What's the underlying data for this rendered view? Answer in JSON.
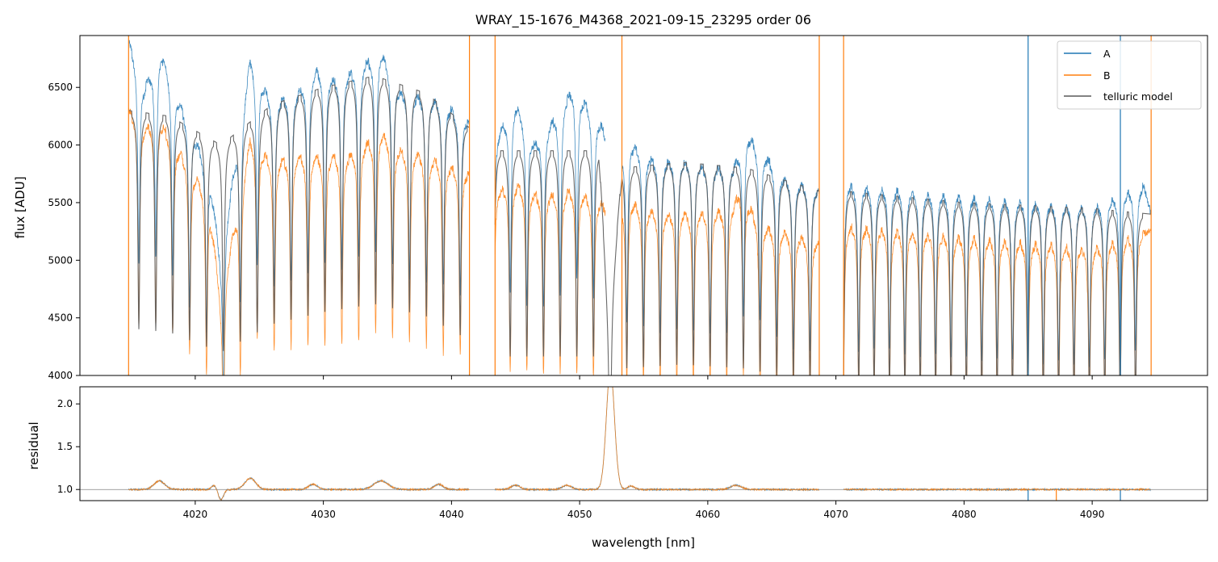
{
  "chart_data": [
    {
      "type": "line",
      "title": "WRAY_15-1676_M4368_2021-09-15_23295  order 06",
      "xlabel": "",
      "ylabel": "flux [ADU]",
      "xlim": [
        4011,
        4099
      ],
      "ylim": [
        4000,
        6950
      ],
      "yticks": [
        4000,
        4500,
        5000,
        5500,
        6000,
        6500
      ],
      "xticks": [
        4020,
        4030,
        4040,
        4050,
        4060,
        4070,
        4080,
        4090
      ],
      "xtick_labels_visible": false,
      "legend": {
        "position": "top-right",
        "entries": [
          "A",
          "B",
          "telluric model"
        ]
      },
      "series": [
        {
          "name": "A",
          "color": "#1f77b4",
          "segments": [
            [
              4014.8,
              4041.4
            ],
            [
              4043.4,
              4052.0
            ],
            [
              4053.3,
              4068.7
            ],
            [
              4070.6,
              4094.6
            ]
          ],
          "continuum_x": [
            4014.8,
            4016.0,
            4017.3,
            4019.0,
            4021.0,
            4022.0,
            4024.3,
            4026.0,
            4028.0,
            4029.5,
            4031.0,
            4032.5,
            4034.5,
            4036.0,
            4038.0,
            4039.5,
            4041.4,
            4043.4,
            4045.0,
            4046.5,
            4048.5,
            4049.5,
            4051.5,
            4053.3,
            4054.0,
            4056.0,
            4058.0,
            4060.0,
            4062.0,
            4063.0,
            4066.0,
            4068.7,
            4070.6,
            4075.0,
            4080.0,
            4085.0,
            4090.0,
            4094.0,
            4094.6
          ],
          "continuum_y": [
            6900,
            6500,
            6800,
            6300,
            5800,
            5000,
            6750,
            6350,
            6450,
            6650,
            6550,
            6650,
            6800,
            6450,
            6400,
            6350,
            6200,
            6050,
            6350,
            6000,
            6300,
            6500,
            6200,
            5900,
            6000,
            5850,
            5850,
            5800,
            5800,
            6100,
            5700,
            5600,
            5650,
            5600,
            5550,
            5500,
            5450,
            5650,
            5400
          ],
          "dip_depth_frac": 0.25
        },
        {
          "name": "B",
          "color": "#ff7f0e",
          "segments": [
            [
              4014.8,
              4041.4
            ],
            [
              4043.4,
              4052.0
            ],
            [
              4053.3,
              4068.7
            ],
            [
              4070.6,
              4094.6
            ]
          ],
          "continuum_x": [
            4014.8,
            4016.0,
            4017.3,
            4019.0,
            4021.0,
            4022.0,
            4024.3,
            4026.0,
            4028.0,
            4030.0,
            4032.0,
            4034.5,
            4036.0,
            4038.0,
            4040.0,
            4041.4,
            4043.4,
            4045.0,
            4047.0,
            4049.5,
            4051.5,
            4053.3,
            4054.0,
            4056.0,
            4060.0,
            4062.0,
            4062.5,
            4064.0,
            4068.7,
            4070.6,
            4075.0,
            4080.0,
            4085.0,
            4090.0,
            4094.6
          ],
          "continuum_y": [
            6300,
            6150,
            6200,
            5900,
            5550,
            4650,
            6050,
            5850,
            5900,
            5900,
            5900,
            6100,
            5950,
            5900,
            5800,
            5750,
            5600,
            5650,
            5550,
            5600,
            5500,
            5450,
            5500,
            5400,
            5400,
            5450,
            5650,
            5300,
            5150,
            5300,
            5250,
            5200,
            5150,
            5100,
            5250
          ],
          "dip_depth_frac": 0.28
        },
        {
          "name": "telluric model",
          "color": "#595959",
          "segments": [
            [
              4014.8,
              4041.4
            ],
            [
              4043.4,
              4068.7
            ],
            [
              4070.6,
              4094.6
            ]
          ],
          "continuum_x": [
            4014.8,
            4018.0,
            4022.0,
            4026.0,
            4030.0,
            4034.0,
            4038.0,
            4041.4,
            4043.4,
            4048.0,
            4051.5,
            4052.3,
            4053.3,
            4058.0,
            4063.0,
            4068.7,
            4070.6,
            4080.0,
            4090.0,
            4094.6
          ],
          "continuum_y": [
            6300,
            6250,
            6000,
            6350,
            6500,
            6600,
            6450,
            6150,
            5950,
            5950,
            5950,
            4400,
            5800,
            5850,
            5800,
            5600,
            5600,
            5500,
            5450,
            5400
          ],
          "dip_depth_frac": 0.3
        }
      ],
      "vertical_artifacts": [
        {
          "x": 4014.8,
          "color": "#ff7f0e"
        },
        {
          "x": 4041.4,
          "color": "#ff7f0e"
        },
        {
          "x": 4043.4,
          "color": "#ff7f0e"
        },
        {
          "x": 4053.3,
          "color": "#ff7f0e"
        },
        {
          "x": 4068.7,
          "color": "#ff7f0e"
        },
        {
          "x": 4070.6,
          "color": "#ff7f0e"
        },
        {
          "x": 4094.6,
          "color": "#ff7f0e"
        },
        {
          "x": 4085.0,
          "color": "#1f77b4"
        },
        {
          "x": 4092.2,
          "color": "#1f77b4"
        }
      ]
    },
    {
      "type": "line",
      "title": "",
      "xlabel": "wavelength [nm]",
      "ylabel": "residual",
      "xlim": [
        4011,
        4099
      ],
      "ylim": [
        0.87,
        2.2
      ],
      "yticks": [
        1.0,
        1.5,
        2.0
      ],
      "ytick_labels": [
        "1.0",
        "1.5",
        "2.0"
      ],
      "xticks": [
        4020,
        4030,
        4040,
        4050,
        4060,
        4070,
        4080,
        4090
      ],
      "xtick_labels": [
        "4020",
        "4030",
        "4040",
        "4050",
        "4060",
        "4070",
        "4080",
        "4090"
      ],
      "reference_line": 1.0,
      "series": [
        {
          "name": "A",
          "color": "#1f77b4",
          "segments": [
            [
              4014.8,
              4041.4
            ],
            [
              4043.4,
              4068.7
            ],
            [
              4070.6,
              4094.6
            ]
          ],
          "bumps": [
            {
              "x": 4017.2,
              "h": 0.1,
              "w": 0.6
            },
            {
              "x": 4021.5,
              "h": 0.05,
              "w": 0.3
            },
            {
              "x": 4022.0,
              "h": -0.12,
              "w": 0.3
            },
            {
              "x": 4024.3,
              "h": 0.13,
              "w": 0.6
            },
            {
              "x": 4029.2,
              "h": 0.06,
              "w": 0.5
            },
            {
              "x": 4034.5,
              "h": 0.1,
              "w": 0.8
            },
            {
              "x": 4039.0,
              "h": 0.06,
              "w": 0.5
            },
            {
              "x": 4045.0,
              "h": 0.05,
              "w": 0.5
            },
            {
              "x": 4049.0,
              "h": 0.05,
              "w": 0.5
            },
            {
              "x": 4052.4,
              "h": 1.4,
              "w": 0.45
            },
            {
              "x": 4054.0,
              "h": 0.04,
              "w": 0.4
            },
            {
              "x": 4062.2,
              "h": 0.05,
              "w": 0.6
            }
          ],
          "spikes": [
            {
              "x": 4085.0,
              "y": 0.87
            },
            {
              "x": 4092.2,
              "y": 0.87
            }
          ]
        },
        {
          "name": "B",
          "color": "#ff7f0e",
          "segments": [
            [
              4014.8,
              4041.4
            ],
            [
              4043.4,
              4068.7
            ],
            [
              4070.6,
              4094.6
            ]
          ],
          "bumps": [
            {
              "x": 4017.2,
              "h": 0.1,
              "w": 0.6
            },
            {
              "x": 4021.5,
              "h": 0.05,
              "w": 0.3
            },
            {
              "x": 4022.0,
              "h": -0.12,
              "w": 0.3
            },
            {
              "x": 4024.3,
              "h": 0.13,
              "w": 0.6
            },
            {
              "x": 4029.2,
              "h": 0.06,
              "w": 0.5
            },
            {
              "x": 4034.5,
              "h": 0.1,
              "w": 0.8
            },
            {
              "x": 4039.0,
              "h": 0.06,
              "w": 0.5
            },
            {
              "x": 4045.0,
              "h": 0.05,
              "w": 0.5
            },
            {
              "x": 4049.0,
              "h": 0.05,
              "w": 0.5
            },
            {
              "x": 4052.4,
              "h": 1.4,
              "w": 0.45
            },
            {
              "x": 4054.0,
              "h": 0.04,
              "w": 0.4
            },
            {
              "x": 4062.2,
              "h": 0.05,
              "w": 0.6
            }
          ],
          "spikes": [
            {
              "x": 4087.2,
              "y": 0.87
            }
          ]
        }
      ]
    }
  ]
}
